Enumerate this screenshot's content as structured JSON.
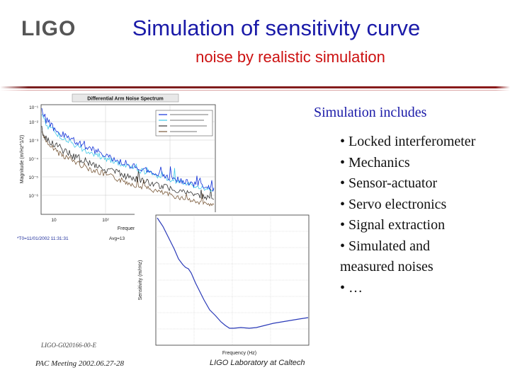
{
  "header": {
    "logo_text": "LIGO",
    "title": "Simulation of sensitivity curve",
    "subtitle": "noise by realistic simulation"
  },
  "content": {
    "heading": "Simulation includes",
    "bullets": [
      "• Locked interferometer",
      "• Mechanics",
      "• Sensor-actuator",
      "• Servo electronics",
      "• Signal extraction",
      "• Simulated and",
      "measured noises",
      "• …"
    ]
  },
  "figure1": {
    "title": "Differential Arm Noise Spectrum",
    "ylabel": "Magnitude (m/Hz^1/2)",
    "xlabel": "Frequency (Hz)",
    "timestamp": "*T0=11/01/2002 11:31:31",
    "avg": "Avg=13",
    "x_ticks": [
      "10",
      "10²"
    ],
    "y_ticks": [
      "10⁻¹",
      "10⁻²",
      "10⁻³",
      "10⁻⁴",
      "10⁻⁵",
      "10⁻⁶"
    ],
    "colors": {
      "blue": "#1030d8",
      "cyan": "#40c8e8",
      "dark": "#333333",
      "brown": "#7a5a3a"
    }
  },
  "figure2": {
    "ylabel": "Sensitivity (m/rHz)",
    "xlabel": "Frequency (Hz)",
    "line_color": "#2a3ab8"
  },
  "footer": {
    "doc_id": "LIGO-G020166-00-E",
    "meeting": "PAC Meeting 2002.06.27-28",
    "lab": "LIGO Laboratory at Caltech"
  }
}
